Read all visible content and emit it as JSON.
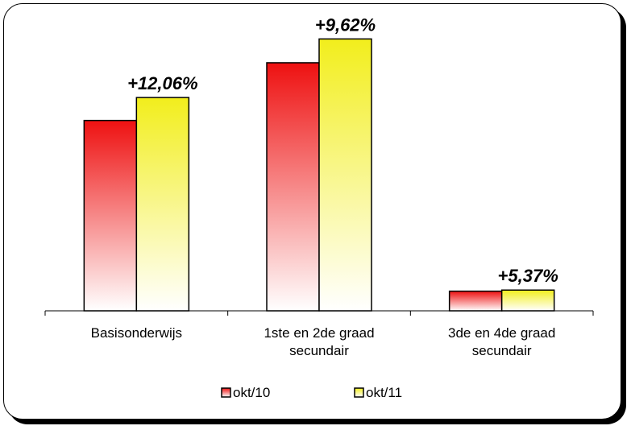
{
  "chart_data": {
    "type": "bar",
    "categories": [
      [
        "Basisonderwijs"
      ],
      [
        "1ste en 2de graad",
        "secundair"
      ],
      [
        "3de en 4de graad",
        "secundair"
      ]
    ],
    "series": [
      {
        "name": "okt/10",
        "values": [
          1550,
          2020,
          160
        ],
        "gradient": [
          "#ee1111",
          "#ffffff"
        ]
      },
      {
        "name": "okt/11",
        "values": [
          1737,
          2214,
          169
        ],
        "gradient": [
          "#f2ee1c",
          "#ffffff"
        ]
      }
    ],
    "annotations": [
      "+12,06%",
      "+9,62%",
      "+5,37%"
    ],
    "ylim": [
      0,
      2400
    ],
    "legend_position": "bottom"
  }
}
